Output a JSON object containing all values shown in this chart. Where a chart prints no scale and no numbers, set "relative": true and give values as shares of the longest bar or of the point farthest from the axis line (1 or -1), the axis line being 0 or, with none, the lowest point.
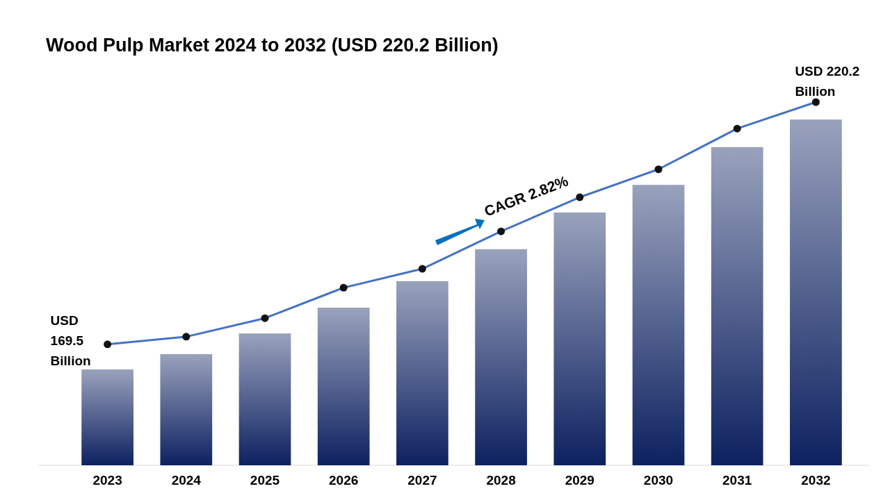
{
  "chart_data": {
    "type": "bar",
    "title": "Wood Pulp Market 2024 to 2032 (USD 220.2 Billion)",
    "categories": [
      "2023",
      "2024",
      "2025",
      "2026",
      "2027",
      "2028",
      "2029",
      "2030",
      "2031",
      "2032"
    ],
    "relative": true,
    "marker": "circle",
    "series": [
      {
        "color": "#0d2160",
        "values": [
          0.264,
          0.306,
          0.363,
          0.434,
          0.507,
          0.595,
          0.696,
          0.772,
          0.876,
          0.952
        ]
      },
      {
        "type": "line",
        "color": "#4472c4",
        "values": [
          0.333,
          0.354,
          0.405,
          0.489,
          0.541,
          0.644,
          0.738,
          0.815,
          0.927,
          1
        ]
      }
    ],
    "annotations": [
      {
        "text": "USD\n169.5\nBillion",
        "x": "2023",
        "y": 0.333
      },
      {
        "text": "USD 220.2\nBillion",
        "x": "2032",
        "y": 1
      },
      "CAGR 2.82%"
    ]
  }
}
